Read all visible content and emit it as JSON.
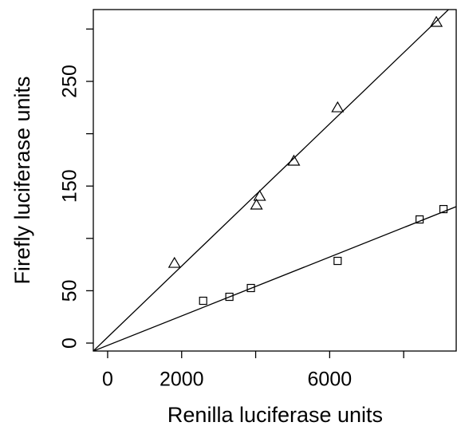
{
  "chart_data": {
    "type": "scatter",
    "xlabel": "Renilla luciferase units",
    "ylabel": "Firefly luciferase units",
    "xlim": [
      -387,
      9419
    ],
    "ylim": [
      -7.6,
      318.6
    ],
    "xticks": [
      0,
      2000,
      {
        "value": 4000,
        "label": null
      },
      6000,
      {
        "value": 8000,
        "label": null
      }
    ],
    "yticks": [
      0,
      50,
      {
        "value": 100,
        "label": null
      },
      150,
      {
        "value": 200,
        "label": null
      },
      250,
      {
        "value": 300,
        "label": null
      }
    ],
    "series": [
      {
        "marker": "triangle",
        "color": "#000000",
        "x": [
          1806,
          4022,
          4108,
          5032,
          6215,
          8882
        ],
        "values": [
          76.2,
          131.9,
          140.2,
          173.8,
          224.8,
          306.4
        ],
        "fit": {
          "intercept": 5.6,
          "slope": 0.03398
        }
      },
      {
        "marker": "square",
        "color": "#000000",
        "x": [
          2581,
          3290,
          3871,
          6215,
          8430,
          9075
        ],
        "values": [
          40.4,
          44.2,
          52.6,
          78.5,
          118.1,
          128.0
        ],
        "fit": {
          "intercept": -2.2,
          "slope": 0.01407
        }
      }
    ]
  }
}
